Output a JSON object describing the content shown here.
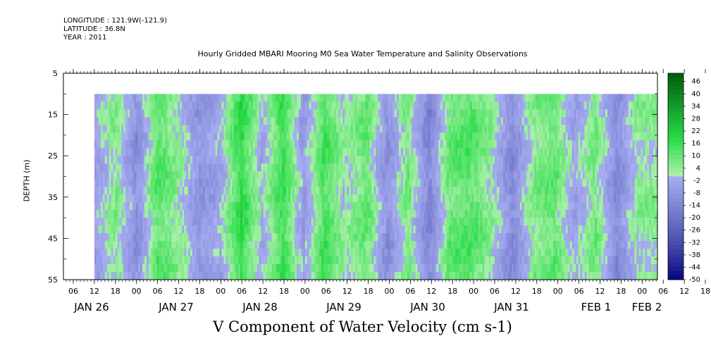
{
  "header": {
    "longitude": "LONGITUDE : 121.9W(-121.9)",
    "latitude": "LATITUDE : 36.8N",
    "year": "YEAR : 2011"
  },
  "chart_data": {
    "type": "heatmap",
    "title": "Hourly Gridded MBARI Mooring M0 Sea Water Temperature and Salinity Observations",
    "xlabel": "V Component of Water Velocity (cm s-1)",
    "ylabel": "DEPTH (m)",
    "ylim": [
      55,
      5
    ],
    "y_ticks": [
      5,
      15,
      25,
      35,
      45,
      55
    ],
    "data_depth_range": [
      10,
      55
    ],
    "x_hour_ticks": [
      "06",
      "12",
      "18",
      "00",
      "06",
      "12",
      "18",
      "00",
      "06",
      "12",
      "18",
      "00",
      "06",
      "12",
      "18",
      "00",
      "06",
      "12",
      "18",
      "00",
      "06",
      "12",
      "18",
      "00",
      "06",
      "12",
      "18",
      "00",
      "06",
      "12",
      "18",
      "00"
    ],
    "x_day_labels": [
      "JAN 26",
      "JAN 27",
      "JAN 28",
      "JAN 29",
      "JAN 30",
      "JAN 31",
      "FEB  1",
      "FEB  2"
    ],
    "data_time_range": [
      "JAN 26 12:00",
      "FEB 2 00:00"
    ],
    "colorbar": {
      "levels": [
        -50,
        -44,
        -38,
        -32,
        -26,
        -20,
        -14,
        -8,
        -2,
        4,
        10,
        16,
        22,
        28,
        34,
        40,
        46
      ],
      "colors_low": "#00007a",
      "colors_mid_neg": "#a9b0f2",
      "colors_mid_pos": "#aaf0aa",
      "colors_high": "#005a10"
    },
    "v_velocity_bands_cm_s": [
      {
        "time": "JAN 26 12:00",
        "value": -4
      },
      {
        "time": "JAN 26 18:00",
        "value": 6
      },
      {
        "time": "JAN 27 00:00",
        "value": -10
      },
      {
        "time": "JAN 27 06:00",
        "value": 12
      },
      {
        "time": "JAN 27 12:00",
        "value": 4
      },
      {
        "time": "JAN 27 18:00",
        "value": -8
      },
      {
        "time": "JAN 28 00:00",
        "value": -3
      },
      {
        "time": "JAN 28 06:00",
        "value": 18
      },
      {
        "time": "JAN 28 12:00",
        "value": -2
      },
      {
        "time": "JAN 28 18:00",
        "value": 16
      },
      {
        "time": "JAN 29 00:00",
        "value": -6
      },
      {
        "time": "JAN 29 06:00",
        "value": 14
      },
      {
        "time": "JAN 29 12:00",
        "value": 2
      },
      {
        "time": "JAN 29 18:00",
        "value": 10
      },
      {
        "time": "JAN 30 00:00",
        "value": -10
      },
      {
        "time": "JAN 30 06:00",
        "value": 8
      },
      {
        "time": "JAN 30 12:00",
        "value": -14
      },
      {
        "time": "JAN 30 18:00",
        "value": 10
      },
      {
        "time": "JAN 31 00:00",
        "value": 12
      },
      {
        "time": "JAN 31 06:00",
        "value": 4
      },
      {
        "time": "JAN 31 12:00",
        "value": -12
      },
      {
        "time": "JAN 31 18:00",
        "value": 6
      },
      {
        "time": "FEB 1 00:00",
        "value": 10
      },
      {
        "time": "FEB 1 06:00",
        "value": -4
      },
      {
        "time": "FEB 1 12:00",
        "value": 8
      },
      {
        "time": "FEB 1 18:00",
        "value": -12
      },
      {
        "time": "FEB 2 00:00",
        "value": 4
      }
    ]
  }
}
